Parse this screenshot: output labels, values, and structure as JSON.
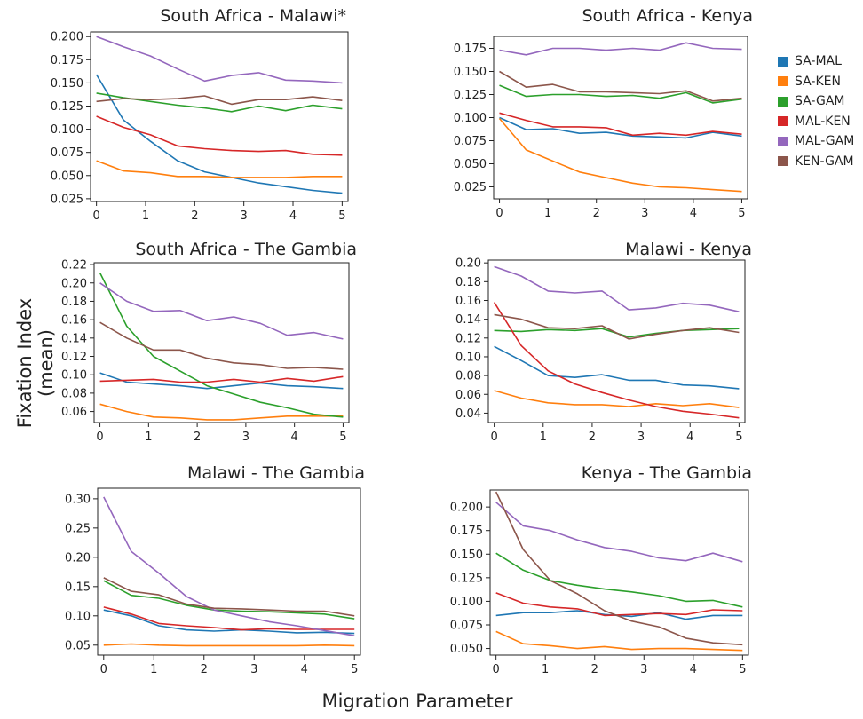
{
  "chart": {
    "ylabel": "Fixation Index (mean)",
    "xlabel": "Migration Parameter"
  },
  "legend": [
    {
      "label": "SA-MAL",
      "color": "#1f77b4"
    },
    {
      "label": "SA-KEN",
      "color": "#ff7f0e"
    },
    {
      "label": "SA-GAM",
      "color": "#2ca02c"
    },
    {
      "label": "MAL-KEN",
      "color": "#d62728"
    },
    {
      "label": "MAL-GAM",
      "color": "#9467bd"
    },
    {
      "label": "KEN-GAM",
      "color": "#8c564b"
    }
  ],
  "chart_data": [
    {
      "type": "line",
      "title": "South Africa - Malawi*",
      "x": [
        0,
        0.55,
        1.1,
        1.65,
        2.2,
        2.75,
        3.3,
        3.85,
        4.4,
        5.0
      ],
      "xticks": [
        0,
        1,
        2,
        3,
        4,
        5
      ],
      "yticks": [
        0.025,
        0.05,
        0.075,
        0.1,
        0.125,
        0.15,
        0.175,
        0.2
      ],
      "ytick_labels": [
        "0.025",
        "0.050",
        "0.075",
        "0.100",
        "0.125",
        "0.150",
        "0.175",
        "0.200"
      ],
      "ylim": [
        0.022,
        0.205
      ],
      "series": [
        {
          "name": "SA-MAL",
          "values": [
            0.159,
            0.11,
            0.087,
            0.066,
            0.054,
            0.048,
            0.042,
            0.038,
            0.034,
            0.031
          ]
        },
        {
          "name": "SA-KEN",
          "values": [
            0.066,
            0.055,
            0.053,
            0.049,
            0.049,
            0.048,
            0.048,
            0.048,
            0.049,
            0.049
          ]
        },
        {
          "name": "SA-GAM",
          "values": [
            0.139,
            0.134,
            0.13,
            0.126,
            0.123,
            0.119,
            0.125,
            0.12,
            0.126,
            0.122
          ]
        },
        {
          "name": "MAL-KEN",
          "values": [
            0.114,
            0.102,
            0.094,
            0.082,
            0.079,
            0.077,
            0.076,
            0.077,
            0.073,
            0.072
          ]
        },
        {
          "name": "MAL-GAM",
          "values": [
            0.2,
            0.189,
            0.179,
            0.165,
            0.152,
            0.158,
            0.161,
            0.153,
            0.152,
            0.15
          ]
        },
        {
          "name": "KEN-GAM",
          "values": [
            0.13,
            0.133,
            0.132,
            0.133,
            0.136,
            0.127,
            0.132,
            0.132,
            0.135,
            0.131
          ]
        }
      ]
    },
    {
      "type": "line",
      "title": "South  Africa - Kenya",
      "x": [
        0,
        0.55,
        1.1,
        1.65,
        2.2,
        2.75,
        3.3,
        3.85,
        4.4,
        5.0
      ],
      "xticks": [
        0,
        1,
        2,
        3,
        4,
        5
      ],
      "yticks": [
        0.025,
        0.05,
        0.075,
        0.1,
        0.125,
        0.15,
        0.175
      ],
      "ytick_labels": [
        "0.025",
        "0.050",
        "0.075",
        "0.100",
        "0.125",
        "0.150",
        "0.175"
      ],
      "ylim": [
        0.012,
        0.188
      ],
      "series": [
        {
          "name": "SA-MAL",
          "values": [
            0.1,
            0.087,
            0.088,
            0.083,
            0.084,
            0.08,
            0.079,
            0.078,
            0.084,
            0.08
          ]
        },
        {
          "name": "SA-KEN",
          "values": [
            0.099,
            0.065,
            0.053,
            0.041,
            0.035,
            0.029,
            0.025,
            0.024,
            0.022,
            0.02
          ]
        },
        {
          "name": "SA-GAM",
          "values": [
            0.135,
            0.123,
            0.125,
            0.125,
            0.123,
            0.124,
            0.121,
            0.127,
            0.116,
            0.12
          ]
        },
        {
          "name": "MAL-KEN",
          "values": [
            0.105,
            0.097,
            0.09,
            0.09,
            0.089,
            0.081,
            0.083,
            0.081,
            0.085,
            0.082
          ]
        },
        {
          "name": "MAL-GAM",
          "values": [
            0.173,
            0.168,
            0.175,
            0.175,
            0.173,
            0.175,
            0.173,
            0.181,
            0.175,
            0.174
          ]
        },
        {
          "name": "KEN-GAM",
          "values": [
            0.15,
            0.133,
            0.136,
            0.128,
            0.128,
            0.127,
            0.126,
            0.129,
            0.118,
            0.121
          ]
        }
      ]
    },
    {
      "type": "line",
      "title": "South Africa - The Gambia",
      "x": [
        0,
        0.55,
        1.1,
        1.65,
        2.2,
        2.75,
        3.3,
        3.85,
        4.4,
        5.0
      ],
      "xticks": [
        0,
        1,
        2,
        3,
        4,
        5
      ],
      "yticks": [
        0.06,
        0.08,
        0.1,
        0.12,
        0.14,
        0.16,
        0.18,
        0.2,
        0.22
      ],
      "ytick_labels": [
        "0.06",
        "0.08",
        "0.10",
        "0.12",
        "0.14",
        "0.16",
        "0.18",
        "0.20",
        "0.22"
      ],
      "ylim": [
        0.048,
        0.222
      ],
      "series": [
        {
          "name": "SA-MAL",
          "values": [
            0.102,
            0.092,
            0.09,
            0.088,
            0.085,
            0.088,
            0.091,
            0.088,
            0.087,
            0.085
          ]
        },
        {
          "name": "SA-KEN",
          "values": [
            0.068,
            0.06,
            0.054,
            0.053,
            0.051,
            0.051,
            0.053,
            0.055,
            0.055,
            0.055
          ]
        },
        {
          "name": "SA-GAM",
          "values": [
            0.211,
            0.153,
            0.12,
            0.104,
            0.088,
            0.079,
            0.07,
            0.064,
            0.057,
            0.054
          ]
        },
        {
          "name": "MAL-KEN",
          "values": [
            0.093,
            0.094,
            0.095,
            0.092,
            0.092,
            0.095,
            0.092,
            0.096,
            0.093,
            0.098
          ]
        },
        {
          "name": "MAL-GAM",
          "values": [
            0.2,
            0.18,
            0.169,
            0.17,
            0.159,
            0.163,
            0.156,
            0.143,
            0.146,
            0.139
          ]
        },
        {
          "name": "KEN-GAM",
          "values": [
            0.157,
            0.14,
            0.127,
            0.127,
            0.118,
            0.113,
            0.111,
            0.107,
            0.108,
            0.106
          ]
        }
      ]
    },
    {
      "type": "line",
      "title": "Malawi - Kenya",
      "x": [
        0,
        0.55,
        1.1,
        1.65,
        2.2,
        2.75,
        3.3,
        3.85,
        4.4,
        5.0
      ],
      "xticks": [
        0,
        1,
        2,
        3,
        4,
        5
      ],
      "yticks": [
        0.04,
        0.06,
        0.08,
        0.1,
        0.12,
        0.14,
        0.16,
        0.18,
        0.2
      ],
      "ytick_labels": [
        "0.04",
        "0.06",
        "0.08",
        "0.10",
        "0.12",
        "0.14",
        "0.16",
        "0.18",
        "0.20"
      ],
      "ylim": [
        0.03,
        0.203
      ],
      "series": [
        {
          "name": "SA-MAL",
          "values": [
            0.111,
            0.096,
            0.08,
            0.078,
            0.081,
            0.075,
            0.075,
            0.07,
            0.069,
            0.066
          ]
        },
        {
          "name": "SA-KEN",
          "values": [
            0.064,
            0.056,
            0.051,
            0.049,
            0.049,
            0.047,
            0.05,
            0.048,
            0.05,
            0.046
          ]
        },
        {
          "name": "SA-GAM",
          "values": [
            0.128,
            0.127,
            0.129,
            0.128,
            0.13,
            0.121,
            0.125,
            0.128,
            0.129,
            0.13
          ]
        },
        {
          "name": "MAL-KEN",
          "values": [
            0.158,
            0.112,
            0.085,
            0.071,
            0.062,
            0.054,
            0.047,
            0.042,
            0.039,
            0.035
          ]
        },
        {
          "name": "MAL-GAM",
          "values": [
            0.196,
            0.186,
            0.17,
            0.168,
            0.17,
            0.15,
            0.152,
            0.157,
            0.155,
            0.148
          ]
        },
        {
          "name": "KEN-GAM",
          "values": [
            0.145,
            0.14,
            0.131,
            0.13,
            0.133,
            0.119,
            0.124,
            0.128,
            0.131,
            0.126
          ]
        }
      ]
    },
    {
      "type": "line",
      "title": "Malawi - The Gambia",
      "x": [
        0,
        0.55,
        1.1,
        1.65,
        2.2,
        2.75,
        3.3,
        3.85,
        4.4,
        5.0
      ],
      "xticks": [
        0,
        1,
        2,
        3,
        4,
        5
      ],
      "yticks": [
        0.05,
        0.1,
        0.15,
        0.2,
        0.25,
        0.3
      ],
      "ytick_labels": [
        "0.05",
        "0.10",
        "0.15",
        "0.20",
        "0.25",
        "0.30"
      ],
      "ylim": [
        0.033,
        0.318
      ],
      "series": [
        {
          "name": "SA-MAL",
          "values": [
            0.11,
            0.1,
            0.083,
            0.076,
            0.074,
            0.076,
            0.074,
            0.071,
            0.072,
            0.07
          ]
        },
        {
          "name": "SA-KEN",
          "values": [
            0.05,
            0.052,
            0.05,
            0.049,
            0.049,
            0.049,
            0.049,
            0.049,
            0.05,
            0.049
          ]
        },
        {
          "name": "SA-GAM",
          "values": [
            0.16,
            0.135,
            0.13,
            0.118,
            0.11,
            0.108,
            0.107,
            0.105,
            0.103,
            0.095
          ]
        },
        {
          "name": "MAL-KEN",
          "values": [
            0.115,
            0.103,
            0.087,
            0.083,
            0.08,
            0.076,
            0.078,
            0.077,
            0.077,
            0.077
          ]
        },
        {
          "name": "MAL-GAM",
          "values": [
            0.303,
            0.21,
            0.173,
            0.133,
            0.11,
            0.1,
            0.09,
            0.083,
            0.075,
            0.066
          ]
        },
        {
          "name": "KEN-GAM",
          "values": [
            0.165,
            0.142,
            0.136,
            0.12,
            0.113,
            0.112,
            0.11,
            0.108,
            0.108,
            0.1
          ]
        }
      ]
    },
    {
      "type": "line",
      "title": "Kenya - The Gambia",
      "x": [
        0,
        0.55,
        1.1,
        1.65,
        2.2,
        2.75,
        3.3,
        3.85,
        4.4,
        5.0
      ],
      "xticks": [
        0,
        1,
        2,
        3,
        4,
        5
      ],
      "yticks": [
        0.05,
        0.075,
        0.1,
        0.125,
        0.15,
        0.175,
        0.2
      ],
      "ytick_labels": [
        "0.050",
        "0.075",
        "0.100",
        "0.125",
        "0.150",
        "0.175",
        "0.200"
      ],
      "ylim": [
        0.043,
        0.218
      ],
      "series": [
        {
          "name": "SA-MAL",
          "values": [
            0.085,
            0.088,
            0.088,
            0.09,
            0.086,
            0.084,
            0.088,
            0.081,
            0.085,
            0.085
          ]
        },
        {
          "name": "SA-KEN",
          "values": [
            0.068,
            0.055,
            0.053,
            0.05,
            0.052,
            0.049,
            0.05,
            0.05,
            0.049,
            0.048
          ]
        },
        {
          "name": "SA-GAM",
          "values": [
            0.151,
            0.133,
            0.122,
            0.117,
            0.113,
            0.11,
            0.106,
            0.1,
            0.101,
            0.094
          ]
        },
        {
          "name": "MAL-KEN",
          "values": [
            0.109,
            0.098,
            0.094,
            0.092,
            0.085,
            0.086,
            0.087,
            0.086,
            0.091,
            0.09
          ]
        },
        {
          "name": "MAL-GAM",
          "values": [
            0.205,
            0.18,
            0.175,
            0.165,
            0.157,
            0.153,
            0.146,
            0.143,
            0.151,
            0.142
          ]
        },
        {
          "name": "KEN-GAM",
          "values": [
            0.216,
            0.155,
            0.122,
            0.108,
            0.09,
            0.079,
            0.073,
            0.061,
            0.056,
            0.054
          ]
        }
      ]
    }
  ]
}
